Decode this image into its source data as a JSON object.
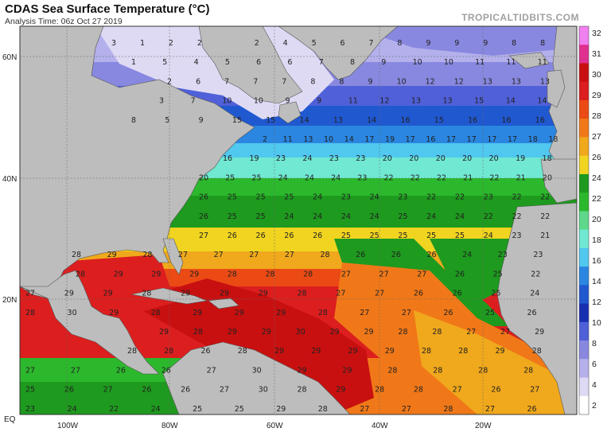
{
  "title": "CDAS Sea Surface Temperature (°C)",
  "analysis_time": "Analysis Time: 06z Oct 27 2019",
  "brand": "TROPICALTIDBITS.COM",
  "lon_labels": [
    "100W",
    "80W",
    "60W",
    "40W",
    "20W"
  ],
  "lat_labels": [
    "60N",
    "40N",
    "20N",
    "EQ"
  ],
  "colorbar": {
    "labels": [
      "32",
      "31",
      "30",
      "29",
      "28",
      "27",
      "26",
      "24",
      "22",
      "20",
      "18",
      "16",
      "14",
      "12",
      "10",
      "8",
      "6",
      "4",
      "2"
    ],
    "colors": [
      "#f07ff0",
      "#e03090",
      "#c81010",
      "#dc1e1e",
      "#ec4a14",
      "#f07818",
      "#f0a81c",
      "#f0d420",
      "#1e9a1e",
      "#2cb82c",
      "#5ed88a",
      "#70e8d2",
      "#50c8f0",
      "#2a86e0",
      "#2058d0",
      "#1830b0",
      "#5060d8",
      "#8888e0",
      "#b4b0ec",
      "#dedaf4",
      "#ffffff"
    ]
  },
  "sst_rows": [
    [
      "3",
      "1",
      "2",
      "2",
      "",
      "2",
      "4",
      "5",
      "6",
      "7",
      "8",
      "9",
      "9",
      "9",
      "8",
      "8"
    ],
    [
      "1",
      "5",
      "4",
      "5",
      "6",
      "6",
      "7",
      "8",
      "9",
      "10",
      "10",
      "11",
      "11",
      "11"
    ],
    [
      "2",
      "6",
      "7",
      "7",
      "7",
      "8",
      "8",
      "9",
      "10",
      "12",
      "12",
      "13",
      "13",
      "13"
    ],
    [
      "3",
      "7",
      "10",
      "10",
      "9",
      "9",
      "11",
      "12",
      "13",
      "13",
      "15",
      "14",
      "14"
    ],
    [
      "8",
      "5",
      "9",
      "15",
      "15",
      "14",
      "13",
      "14",
      "16",
      "15",
      "16",
      "16",
      "16"
    ],
    [
      "2",
      "11",
      "13",
      "10",
      "14",
      "17",
      "19",
      "17",
      "16",
      "17",
      "17",
      "17",
      "17",
      "18",
      "18"
    ],
    [
      "16",
      "19",
      "23",
      "24",
      "23",
      "23",
      "20",
      "20",
      "20",
      "20",
      "20",
      "19",
      "18"
    ],
    [
      "20",
      "25",
      "25",
      "24",
      "24",
      "24",
      "23",
      "22",
      "22",
      "22",
      "21",
      "22",
      "21",
      "20"
    ],
    [
      "26",
      "25",
      "25",
      "25",
      "24",
      "23",
      "24",
      "23",
      "22",
      "22",
      "23",
      "22",
      "22"
    ],
    [
      "26",
      "25",
      "25",
      "24",
      "24",
      "24",
      "24",
      "25",
      "24",
      "24",
      "22",
      "22",
      "22"
    ],
    [
      "27",
      "26",
      "26",
      "26",
      "26",
      "25",
      "25",
      "25",
      "25",
      "25",
      "24",
      "23",
      "21"
    ],
    [
      "28",
      "29",
      "28",
      "27",
      "27",
      "27",
      "27",
      "28",
      "26",
      "26",
      "26",
      "24",
      "23",
      "23"
    ],
    [
      "28",
      "29",
      "29",
      "29",
      "28",
      "28",
      "28",
      "27",
      "27",
      "27",
      "26",
      "25",
      "22"
    ],
    [
      "27",
      "29",
      "29",
      "28",
      "29",
      "29",
      "29",
      "28",
      "27",
      "27",
      "26",
      "26",
      "25",
      "24"
    ],
    [
      "28",
      "30",
      "29",
      "28",
      "29",
      "29",
      "29",
      "28",
      "27",
      "27",
      "26",
      "25",
      "26"
    ],
    [
      "29",
      "28",
      "29",
      "29",
      "30",
      "29",
      "29",
      "28",
      "28",
      "27",
      "27",
      "29"
    ],
    [
      "28",
      "28",
      "26",
      "28",
      "29",
      "29",
      "29",
      "29",
      "28",
      "28",
      "29",
      "28"
    ],
    [
      "27",
      "27",
      "26",
      "26",
      "27",
      "30",
      "29",
      "29",
      "28",
      "28",
      "28",
      "28"
    ],
    [
      "25",
      "26",
      "27",
      "26",
      "26",
      "27",
      "30",
      "28",
      "29",
      "28",
      "28",
      "27",
      "26",
      "27"
    ],
    [
      "23",
      "24",
      "22",
      "24",
      "25",
      "25",
      "29",
      "28",
      "27",
      "27",
      "28",
      "27",
      "26"
    ]
  ]
}
